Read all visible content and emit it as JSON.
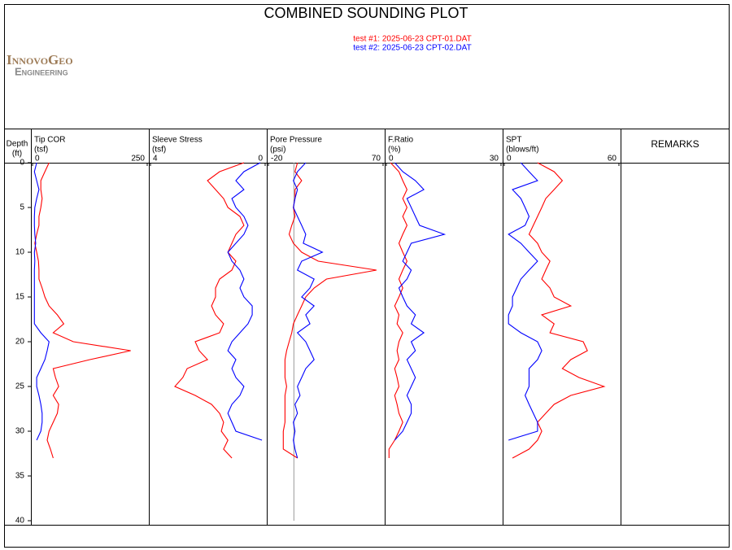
{
  "title": "COMBINED SOUNDING PLOT",
  "logo": {
    "line1": "InnovoGeo",
    "line2": "Engineering"
  },
  "remarks": "REMARKS",
  "depth_axis": {
    "label": "Depth",
    "unit": "(ft)",
    "lim": [
      0,
      40
    ],
    "ticks": [
      0,
      5,
      10,
      15,
      20,
      25,
      30,
      35,
      40
    ],
    "values": [
      0,
      1,
      2,
      3,
      4,
      5,
      6,
      7,
      8,
      9,
      10,
      11,
      12,
      13,
      14,
      15,
      16,
      17,
      18,
      19,
      20,
      21,
      22,
      23,
      24,
      25,
      26,
      27,
      28,
      29,
      30,
      31,
      32,
      33
    ]
  },
  "chart_data": [
    {
      "type": "line",
      "title": "Tip COR",
      "unit": "(tsf)",
      "xlim": [
        0,
        250
      ],
      "xticks": [
        0,
        250
      ],
      "grid": false,
      "series": [
        {
          "name": "test #1: 2025-06-23 CPT-01.DAT",
          "color": "#ff0000",
          "values": [
            36,
            27,
            18,
            18,
            21,
            18,
            14,
            14,
            9,
            5,
            9,
            13,
            14,
            14,
            21,
            27,
            36,
            54,
            68,
            45,
            89,
            214,
            125,
            45,
            50,
            57,
            45,
            57,
            54,
            45,
            36,
            32,
            39,
            45
          ]
        },
        {
          "name": "test #2: 2025-06-23 CPT-02.DAT",
          "color": "#0000ff",
          "values": [
            9,
            4,
            9,
            14,
            9,
            5,
            4,
            4,
            5,
            7,
            4,
            5,
            4,
            4,
            4,
            4,
            4,
            4,
            4,
            18,
            36,
            32,
            27,
            18,
            9,
            9,
            14,
            18,
            21,
            21,
            18,
            9,
            null,
            null
          ]
        }
      ]
    },
    {
      "type": "line",
      "title": "Sleeve Stress",
      "unit": "(tsf)",
      "xlim": [
        4,
        0
      ],
      "xticks": [
        4,
        0
      ],
      "grid": false,
      "series": [
        {
          "name": "test #1: 2025-06-23 CPT-01.DAT",
          "color": "#ff0000",
          "values": [
            0.74,
            1.59,
            2.01,
            1.73,
            1.45,
            1.3,
            0.88,
            0.74,
            1.02,
            1.16,
            1.3,
            1.02,
            1.16,
            1.59,
            1.73,
            1.73,
            1.87,
            1.73,
            1.45,
            1.59,
            2.44,
            2.3,
            2.01,
            2.72,
            2.87,
            3.15,
            2.44,
            1.87,
            1.59,
            1.45,
            1.53,
            1.3,
            1.45,
            1.16
          ]
        },
        {
          "name": "test #2: 2025-06-23 CPT-02.DAT",
          "color": "#0000ff",
          "values": [
            0.17,
            0.74,
            1.02,
            0.74,
            1.16,
            1.02,
            0.74,
            0.6,
            0.74,
            1.02,
            1.3,
            1.16,
            0.88,
            0.74,
            0.88,
            0.74,
            0.45,
            0.45,
            0.6,
            0.88,
            1.16,
            1.3,
            1.02,
            1.16,
            1.02,
            0.74,
            0.88,
            1.16,
            1.3,
            1.16,
            1.02,
            0.11,
            null,
            null
          ]
        }
      ]
    },
    {
      "type": "line",
      "title": "Pore Pressure",
      "unit": "(psi)",
      "xlim": [
        -20,
        70
      ],
      "xticks": [
        -20,
        70
      ],
      "reference_line": 0,
      "grid": false,
      "series": [
        {
          "name": "test #1: 2025-06-23 CPT-01.DAT",
          "color": "#ff0000",
          "values": [
            2.8,
            0.9,
            6.1,
            0.9,
            0.9,
            -0.4,
            0.9,
            -1.7,
            -3.7,
            -0.4,
            6.1,
            19.1,
            64.8,
            25.6,
            15.9,
            9.3,
            6.1,
            2.8,
            -0.4,
            -1.7,
            -3.7,
            -5.7,
            -7,
            -7,
            -7,
            -5.7,
            -7,
            -7,
            -7,
            -7,
            -8.3,
            -8.3,
            -8.3,
            2.8
          ]
        },
        {
          "name": "test #2: 2025-06-23 CPT-02.DAT",
          "color": "#0000ff",
          "values": [
            9.3,
            2.8,
            -0.4,
            2.8,
            0.9,
            -0.4,
            2.8,
            6.1,
            9.3,
            7.4,
            22.4,
            6.1,
            2.8,
            15.9,
            12.6,
            6.1,
            15.9,
            9.3,
            12.6,
            2.8,
            9.3,
            12.6,
            15.9,
            9.3,
            6.1,
            2.8,
            4.8,
            0.9,
            2.8,
            -0.4,
            0.9,
            -0.4,
            0.9,
            2.8
          ]
        }
      ]
    },
    {
      "type": "line",
      "title": "F.Ratio",
      "unit": "(%)",
      "xlim": [
        0,
        30
      ],
      "xticks": [
        0,
        30
      ],
      "grid": false,
      "series": [
        {
          "name": "test #1: 2025-06-23 CPT-01.DAT",
          "color": "#ff0000",
          "values": [
            1.1,
            3.3,
            4.3,
            5.4,
            4.3,
            5.4,
            4.3,
            5.4,
            4.3,
            3.3,
            4.3,
            5.4,
            4.3,
            3.3,
            4.3,
            3.3,
            2.2,
            3.3,
            2.8,
            4.3,
            3.3,
            2.8,
            3.3,
            2.2,
            2.8,
            3.3,
            2.2,
            2.8,
            3.3,
            4.3,
            3.3,
            2.2,
            0.7,
            0.7
          ]
        },
        {
          "name": "test #2: 2025-06-23 CPT-02.DAT",
          "color": "#0000ff",
          "values": [
            2.2,
            4.3,
            7.6,
            9.8,
            5.4,
            6.5,
            7.6,
            8.7,
            15.2,
            6.5,
            5.4,
            4.3,
            6.5,
            5.4,
            3.3,
            4.3,
            5.4,
            7.6,
            6.5,
            9.8,
            6.5,
            7.6,
            5.4,
            6.5,
            7.6,
            6.5,
            5.4,
            6.5,
            6.5,
            5.4,
            4.3,
            2.2,
            null,
            null
          ]
        }
      ]
    },
    {
      "type": "line",
      "title": "SPT",
      "unit": "(blows/ft)",
      "xlim": [
        0,
        60
      ],
      "xticks": [
        0,
        60
      ],
      "grid": false,
      "series": [
        {
          "name": "test #1: 2025-06-23 CPT-01.DAT",
          "color": "#ff0000",
          "values": [
            17.4,
            26.1,
            30.4,
            26.1,
            21.7,
            19.6,
            17.4,
            15.2,
            13,
            17.4,
            19.6,
            23.9,
            21.7,
            19.6,
            23.9,
            26.1,
            34.8,
            19.6,
            26.1,
            23.9,
            41.3,
            43.5,
            34.8,
            30.4,
            39.1,
            52.2,
            34.8,
            26.1,
            21.7,
            17.4,
            19.6,
            17.4,
            13,
            4.3
          ]
        },
        {
          "name": "test #2: 2025-06-23 CPT-02.DAT",
          "color": "#0000ff",
          "values": [
            8.7,
            13,
            17.4,
            4.3,
            8.7,
            10.9,
            13,
            10.9,
            2.2,
            8.7,
            13,
            17.4,
            13,
            8.7,
            6.5,
            4.3,
            4.3,
            2.2,
            2.2,
            8.7,
            17.4,
            19.6,
            17.4,
            13,
            13,
            13,
            10.9,
            13,
            15.2,
            17.4,
            17.4,
            2.2,
            null,
            null
          ]
        }
      ]
    }
  ]
}
